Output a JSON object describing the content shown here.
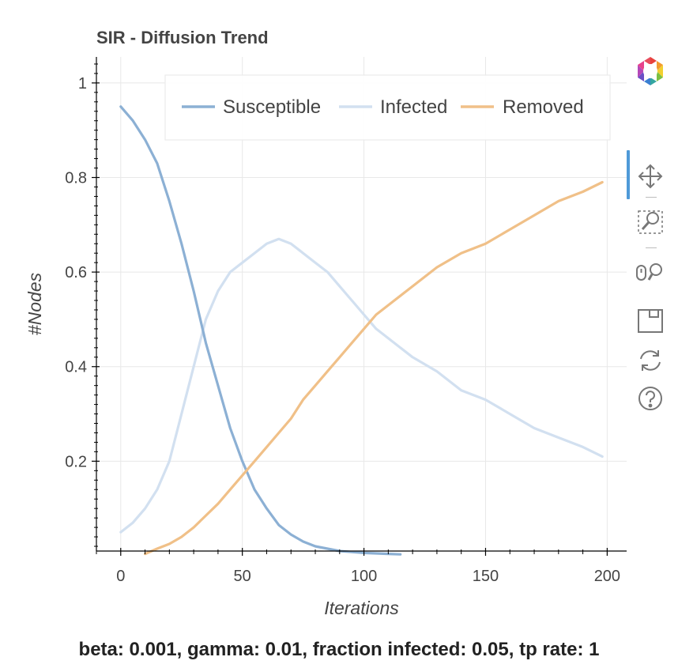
{
  "chart_data": {
    "type": "line",
    "title": "SIR - Diffusion Trend",
    "xlabel": "Iterations",
    "ylabel": "#Nodes",
    "xlim": [
      -10,
      208
    ],
    "ylim": [
      0.01,
      1.055
    ],
    "x_ticks": [
      0,
      50,
      100,
      150,
      200
    ],
    "y_ticks": [
      0.2,
      0.4,
      0.6,
      0.8,
      1
    ],
    "x_tick_labels": [
      "0",
      "50",
      "100",
      "150",
      "200"
    ],
    "y_tick_labels": [
      "0.2",
      "0.4",
      "0.6",
      "0.8",
      "1"
    ],
    "grid": true,
    "legend_position": "top-right",
    "series": [
      {
        "name": "Susceptible",
        "color": "#8cb0d4",
        "x": [
          0,
          5,
          10,
          15,
          20,
          25,
          30,
          35,
          40,
          45,
          50,
          55,
          60,
          65,
          70,
          75,
          80,
          85,
          90,
          95,
          100,
          110,
          115
        ],
        "values": [
          0.95,
          0.92,
          0.88,
          0.83,
          0.75,
          0.66,
          0.56,
          0.45,
          0.36,
          0.27,
          0.2,
          0.14,
          0.1,
          0.065,
          0.045,
          0.03,
          0.02,
          0.015,
          0.01,
          0.008,
          0.006,
          0.004,
          0.003
        ]
      },
      {
        "name": "Infected",
        "color": "#d2e0f0",
        "x": [
          0,
          5,
          10,
          15,
          20,
          25,
          30,
          35,
          40,
          45,
          50,
          55,
          60,
          65,
          70,
          75,
          80,
          85,
          90,
          95,
          100,
          105,
          110,
          120,
          130,
          140,
          150,
          160,
          170,
          180,
          190,
          198
        ],
        "values": [
          0.05,
          0.07,
          0.1,
          0.14,
          0.2,
          0.3,
          0.4,
          0.5,
          0.56,
          0.6,
          0.62,
          0.64,
          0.66,
          0.67,
          0.66,
          0.64,
          0.62,
          0.6,
          0.57,
          0.54,
          0.51,
          0.48,
          0.46,
          0.42,
          0.39,
          0.35,
          0.33,
          0.3,
          0.27,
          0.25,
          0.23,
          0.21
        ]
      },
      {
        "name": "Removed",
        "color": "#f0c088",
        "x": [
          10,
          15,
          20,
          25,
          30,
          35,
          40,
          45,
          50,
          55,
          60,
          65,
          70,
          75,
          80,
          85,
          90,
          95,
          100,
          105,
          110,
          120,
          130,
          140,
          150,
          160,
          170,
          180,
          190,
          198
        ],
        "values": [
          0.004,
          0.015,
          0.025,
          0.04,
          0.06,
          0.085,
          0.11,
          0.14,
          0.17,
          0.2,
          0.23,
          0.26,
          0.29,
          0.33,
          0.36,
          0.39,
          0.42,
          0.45,
          0.48,
          0.51,
          0.53,
          0.57,
          0.61,
          0.64,
          0.66,
          0.69,
          0.72,
          0.75,
          0.77,
          0.79
        ]
      }
    ]
  },
  "footer": {
    "caption": "beta: 0.001, gamma: 0.01, fraction infected: 0.05, tp rate: 1"
  },
  "toolbar": {
    "icons": [
      "bokeh-logo-icon",
      "pan-icon",
      "box-zoom-icon",
      "wheel-zoom-icon",
      "save-icon",
      "reset-icon",
      "help-icon"
    ]
  }
}
